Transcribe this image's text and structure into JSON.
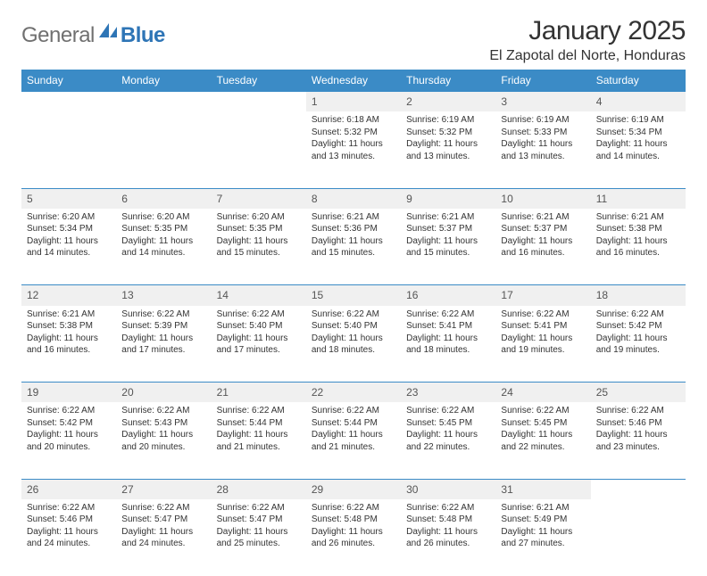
{
  "logo": {
    "general": "General",
    "blue": "Blue"
  },
  "title": "January 2025",
  "location": "El Zapotal del Norte, Honduras",
  "weekday_labels": [
    "Sunday",
    "Monday",
    "Tuesday",
    "Wednesday",
    "Thursday",
    "Friday",
    "Saturday"
  ],
  "colors": {
    "header_bg": "#3b8bc6",
    "header_text": "#ffffff",
    "daynum_bg": "#f0f0f0",
    "rule": "#3b8bc6",
    "text": "#333333",
    "logo_gray": "#707070",
    "logo_blue": "#2e75b6"
  },
  "weeks": [
    [
      null,
      null,
      null,
      {
        "n": "1",
        "sr": "6:18 AM",
        "ss": "5:32 PM",
        "dl": "11 hours and 13 minutes."
      },
      {
        "n": "2",
        "sr": "6:19 AM",
        "ss": "5:32 PM",
        "dl": "11 hours and 13 minutes."
      },
      {
        "n": "3",
        "sr": "6:19 AM",
        "ss": "5:33 PM",
        "dl": "11 hours and 13 minutes."
      },
      {
        "n": "4",
        "sr": "6:19 AM",
        "ss": "5:34 PM",
        "dl": "11 hours and 14 minutes."
      }
    ],
    [
      {
        "n": "5",
        "sr": "6:20 AM",
        "ss": "5:34 PM",
        "dl": "11 hours and 14 minutes."
      },
      {
        "n": "6",
        "sr": "6:20 AM",
        "ss": "5:35 PM",
        "dl": "11 hours and 14 minutes."
      },
      {
        "n": "7",
        "sr": "6:20 AM",
        "ss": "5:35 PM",
        "dl": "11 hours and 15 minutes."
      },
      {
        "n": "8",
        "sr": "6:21 AM",
        "ss": "5:36 PM",
        "dl": "11 hours and 15 minutes."
      },
      {
        "n": "9",
        "sr": "6:21 AM",
        "ss": "5:37 PM",
        "dl": "11 hours and 15 minutes."
      },
      {
        "n": "10",
        "sr": "6:21 AM",
        "ss": "5:37 PM",
        "dl": "11 hours and 16 minutes."
      },
      {
        "n": "11",
        "sr": "6:21 AM",
        "ss": "5:38 PM",
        "dl": "11 hours and 16 minutes."
      }
    ],
    [
      {
        "n": "12",
        "sr": "6:21 AM",
        "ss": "5:38 PM",
        "dl": "11 hours and 16 minutes."
      },
      {
        "n": "13",
        "sr": "6:22 AM",
        "ss": "5:39 PM",
        "dl": "11 hours and 17 minutes."
      },
      {
        "n": "14",
        "sr": "6:22 AM",
        "ss": "5:40 PM",
        "dl": "11 hours and 17 minutes."
      },
      {
        "n": "15",
        "sr": "6:22 AM",
        "ss": "5:40 PM",
        "dl": "11 hours and 18 minutes."
      },
      {
        "n": "16",
        "sr": "6:22 AM",
        "ss": "5:41 PM",
        "dl": "11 hours and 18 minutes."
      },
      {
        "n": "17",
        "sr": "6:22 AM",
        "ss": "5:41 PM",
        "dl": "11 hours and 19 minutes."
      },
      {
        "n": "18",
        "sr": "6:22 AM",
        "ss": "5:42 PM",
        "dl": "11 hours and 19 minutes."
      }
    ],
    [
      {
        "n": "19",
        "sr": "6:22 AM",
        "ss": "5:42 PM",
        "dl": "11 hours and 20 minutes."
      },
      {
        "n": "20",
        "sr": "6:22 AM",
        "ss": "5:43 PM",
        "dl": "11 hours and 20 minutes."
      },
      {
        "n": "21",
        "sr": "6:22 AM",
        "ss": "5:44 PM",
        "dl": "11 hours and 21 minutes."
      },
      {
        "n": "22",
        "sr": "6:22 AM",
        "ss": "5:44 PM",
        "dl": "11 hours and 21 minutes."
      },
      {
        "n": "23",
        "sr": "6:22 AM",
        "ss": "5:45 PM",
        "dl": "11 hours and 22 minutes."
      },
      {
        "n": "24",
        "sr": "6:22 AM",
        "ss": "5:45 PM",
        "dl": "11 hours and 22 minutes."
      },
      {
        "n": "25",
        "sr": "6:22 AM",
        "ss": "5:46 PM",
        "dl": "11 hours and 23 minutes."
      }
    ],
    [
      {
        "n": "26",
        "sr": "6:22 AM",
        "ss": "5:46 PM",
        "dl": "11 hours and 24 minutes."
      },
      {
        "n": "27",
        "sr": "6:22 AM",
        "ss": "5:47 PM",
        "dl": "11 hours and 24 minutes."
      },
      {
        "n": "28",
        "sr": "6:22 AM",
        "ss": "5:47 PM",
        "dl": "11 hours and 25 minutes."
      },
      {
        "n": "29",
        "sr": "6:22 AM",
        "ss": "5:48 PM",
        "dl": "11 hours and 26 minutes."
      },
      {
        "n": "30",
        "sr": "6:22 AM",
        "ss": "5:48 PM",
        "dl": "11 hours and 26 minutes."
      },
      {
        "n": "31",
        "sr": "6:21 AM",
        "ss": "5:49 PM",
        "dl": "11 hours and 27 minutes."
      },
      null
    ]
  ],
  "labels": {
    "sunrise": "Sunrise:",
    "sunset": "Sunset:",
    "daylight": "Daylight:"
  }
}
